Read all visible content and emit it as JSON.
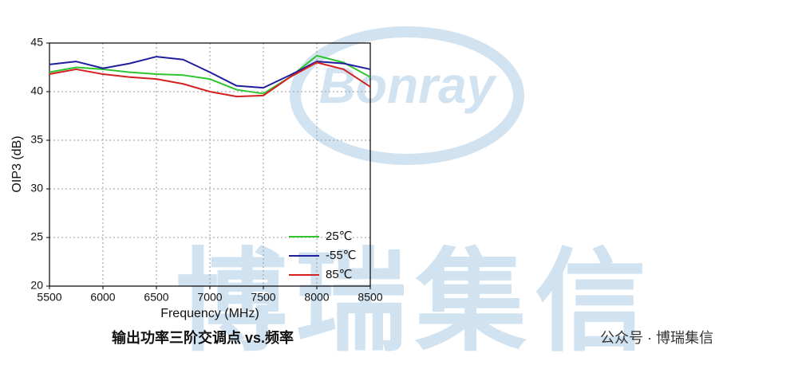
{
  "chart_data": {
    "type": "line",
    "xlabel": "Frequency (MHz)",
    "ylabel": "OIP3 (dB)",
    "caption": "输出功率三阶交调点  vs.频率",
    "watermark_logo": "Bonray",
    "watermark_text": "博瑞集信",
    "footer": "公众号 · 博瑞集信",
    "x": [
      5500,
      5750,
      6000,
      6250,
      6500,
      6750,
      7000,
      7250,
      7500,
      7750,
      8000,
      8250,
      8500
    ],
    "series": [
      {
        "name": "25℃",
        "color": "#2ec52e",
        "values": [
          42.0,
          42.5,
          42.3,
          42.0,
          41.8,
          41.7,
          41.3,
          40.2,
          39.8,
          41.5,
          43.7,
          43.0,
          41.5
        ]
      },
      {
        "name": "-55℃",
        "color": "#1f1f9e",
        "values": [
          42.8,
          43.1,
          42.4,
          42.9,
          43.6,
          43.3,
          42.0,
          40.6,
          40.4,
          41.7,
          43.1,
          42.9,
          42.3
        ]
      },
      {
        "name": "85℃",
        "color": "#d42020",
        "values": [
          41.8,
          42.3,
          41.8,
          41.5,
          41.3,
          40.8,
          40.0,
          39.5,
          39.6,
          41.5,
          43.0,
          42.3,
          40.5
        ]
      }
    ],
    "xlim": [
      5500,
      8500
    ],
    "xticks": [
      5500,
      6000,
      6500,
      7000,
      7500,
      8000,
      8500
    ],
    "ylim": [
      20,
      45
    ],
    "yticks": [
      20,
      25,
      30,
      35,
      40,
      45
    ],
    "grid": true,
    "legend": "lower right"
  }
}
